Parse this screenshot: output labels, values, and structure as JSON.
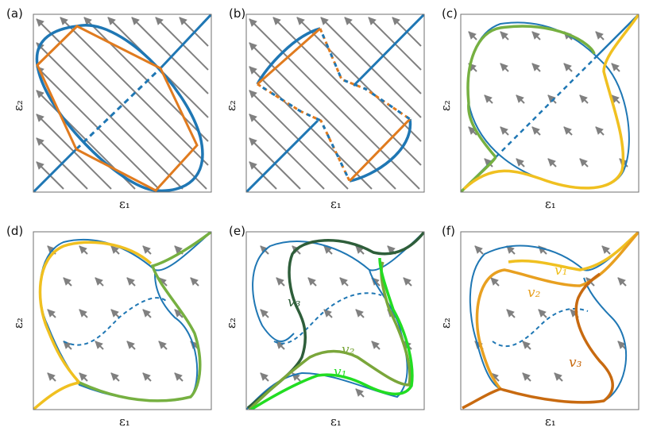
{
  "colors": {
    "blue": "#1f77b4",
    "orange": "#e07b1f",
    "field_arrow": "#808080",
    "green_light": "#76b041",
    "green_bright": "#22dd22",
    "green_mid": "#7aa63a",
    "green_dark": "#2e5e3a",
    "yellow": "#f0c020",
    "gold": "#e8a020",
    "dark_orange": "#c86a10"
  },
  "panels": [
    {
      "label": "(a)",
      "xlabel": "ε₁",
      "ylabel": "ε₂"
    },
    {
      "label": "(b)",
      "xlabel": "ε₁",
      "ylabel": "ε₂"
    },
    {
      "label": "(c)",
      "xlabel": "ε₁",
      "ylabel": "ε₂"
    },
    {
      "label": "(d)",
      "xlabel": "ε₁",
      "ylabel": "ε₂"
    },
    {
      "label": "(e)",
      "xlabel": "ε₁",
      "ylabel": "ε₂",
      "curves": [
        {
          "name": "v₃"
        },
        {
          "name": "v₂"
        },
        {
          "name": "v₁"
        }
      ]
    },
    {
      "label": "(f)",
      "xlabel": "ε₁",
      "ylabel": "ε₂",
      "curves": [
        {
          "name": "v₁"
        },
        {
          "name": "v₂"
        },
        {
          "name": "v₃"
        }
      ]
    }
  ]
}
